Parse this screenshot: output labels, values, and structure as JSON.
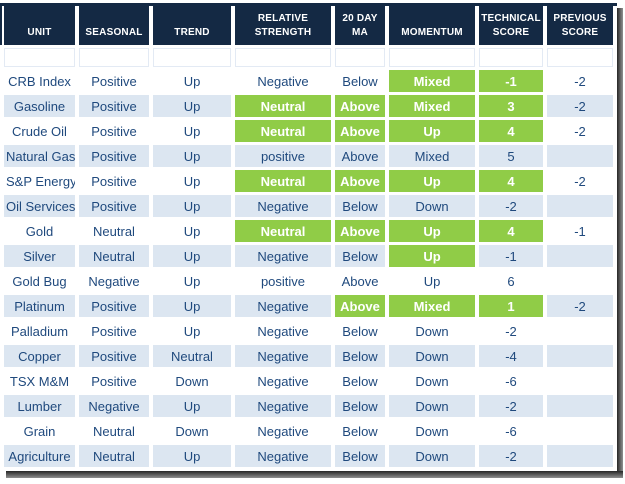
{
  "chart_data": {
    "type": "table",
    "title": "",
    "columns": [
      {
        "key": "unit",
        "label": "UNIT"
      },
      {
        "key": "seasonal",
        "label": "SEASONAL"
      },
      {
        "key": "trend",
        "label": "TREND"
      },
      {
        "key": "relative_strength",
        "label": "RELATIVE STRENGTH"
      },
      {
        "key": "ma_20day",
        "label": "20 DAY MA"
      },
      {
        "key": "momentum",
        "label": "MOMENTUM"
      },
      {
        "key": "technical_score",
        "label": "TECHNICAL SCORE"
      },
      {
        "key": "previous_score",
        "label": "PREVIOUS SCORE"
      }
    ],
    "rows": [
      {
        "unit": "CRB Index",
        "seasonal": "Positive",
        "trend": "Up",
        "relative_strength": "Negative",
        "ma_20day": "Below",
        "momentum": "Mixed",
        "technical_score": "-1",
        "previous_score": "-2",
        "highlights": [
          "momentum",
          "technical_score"
        ]
      },
      {
        "unit": "Gasoline",
        "seasonal": "Positive",
        "trend": "Up",
        "relative_strength": "Neutral",
        "ma_20day": "Above",
        "momentum": "Mixed",
        "technical_score": "3",
        "previous_score": "-2",
        "highlights": [
          "relative_strength",
          "ma_20day",
          "momentum",
          "technical_score"
        ]
      },
      {
        "unit": "Crude Oil",
        "seasonal": "Positive",
        "trend": "Up",
        "relative_strength": "Neutral",
        "ma_20day": "Above",
        "momentum": "Up",
        "technical_score": "4",
        "previous_score": "-2",
        "highlights": [
          "relative_strength",
          "ma_20day",
          "momentum",
          "technical_score"
        ]
      },
      {
        "unit": "Natural Gas",
        "seasonal": "Positive",
        "trend": "Up",
        "relative_strength": "positive",
        "ma_20day": "Above",
        "momentum": "Mixed",
        "technical_score": "5",
        "previous_score": "",
        "highlights": []
      },
      {
        "unit": "S&P Energy",
        "seasonal": "Positive",
        "trend": "Up",
        "relative_strength": "Neutral",
        "ma_20day": "Above",
        "momentum": "Up",
        "technical_score": "4",
        "previous_score": "-2",
        "highlights": [
          "relative_strength",
          "ma_20day",
          "momentum",
          "technical_score"
        ]
      },
      {
        "unit": "Oil Services",
        "seasonal": "Positive",
        "trend": "Up",
        "relative_strength": "Negative",
        "ma_20day": "Below",
        "momentum": "Down",
        "technical_score": "-2",
        "previous_score": "",
        "highlights": []
      },
      {
        "unit": "Gold",
        "seasonal": "Neutral",
        "trend": "Up",
        "relative_strength": "Neutral",
        "ma_20day": "Above",
        "momentum": "Up",
        "technical_score": "4",
        "previous_score": "-1",
        "highlights": [
          "relative_strength",
          "ma_20day",
          "momentum",
          "technical_score"
        ]
      },
      {
        "unit": "Silver",
        "seasonal": "Neutral",
        "trend": "Up",
        "relative_strength": "Negative",
        "ma_20day": "Below",
        "momentum": "Up",
        "technical_score": "-1",
        "previous_score": "",
        "highlights": [
          "momentum"
        ]
      },
      {
        "unit": "Gold Bug",
        "seasonal": "Negative",
        "trend": "Up",
        "relative_strength": "positive",
        "ma_20day": "Above",
        "momentum": "Up",
        "technical_score": "6",
        "previous_score": "",
        "highlights": []
      },
      {
        "unit": "Platinum",
        "seasonal": "Positive",
        "trend": "Up",
        "relative_strength": "Negative",
        "ma_20day": "Above",
        "momentum": "Mixed",
        "technical_score": "1",
        "previous_score": "-2",
        "highlights": [
          "ma_20day",
          "momentum",
          "technical_score"
        ]
      },
      {
        "unit": "Palladium",
        "seasonal": "Positive",
        "trend": "Up",
        "relative_strength": "Negative",
        "ma_20day": "Below",
        "momentum": "Down",
        "technical_score": "-2",
        "previous_score": "",
        "highlights": []
      },
      {
        "unit": "Copper",
        "seasonal": "Positive",
        "trend": "Neutral",
        "relative_strength": "Negative",
        "ma_20day": "Below",
        "momentum": "Down",
        "technical_score": "-4",
        "previous_score": "",
        "highlights": []
      },
      {
        "unit": "TSX M&M",
        "seasonal": "Positive",
        "trend": "Down",
        "relative_strength": "Negative",
        "ma_20day": "Below",
        "momentum": "Down",
        "technical_score": "-6",
        "previous_score": "",
        "highlights": []
      },
      {
        "unit": "Lumber",
        "seasonal": "Negative",
        "trend": "Up",
        "relative_strength": "Negative",
        "ma_20day": "Below",
        "momentum": "Down",
        "technical_score": "-2",
        "previous_score": "",
        "highlights": []
      },
      {
        "unit": "Grain",
        "seasonal": "Neutral",
        "trend": "Down",
        "relative_strength": "Negative",
        "ma_20day": "Below",
        "momentum": "Down",
        "technical_score": "-6",
        "previous_score": "",
        "highlights": []
      },
      {
        "unit": "Agriculture",
        "seasonal": "Neutral",
        "trend": "Up",
        "relative_strength": "Negative",
        "ma_20day": "Below",
        "momentum": "Down",
        "technical_score": "-2",
        "previous_score": "",
        "highlights": []
      }
    ],
    "layout": {
      "stripe_pattern": "even rows (2nd, 4th, ...) shaded light blue",
      "highlight_meaning": "green cell with white bold text",
      "header_align": "bottom-center, wraps to two lines on narrow columns"
    },
    "colors": {
      "header_bg": "#142944",
      "header_text": "#FFFFFF",
      "body_text": "#1F497D",
      "row_stripe": "#DCE6F1",
      "highlight": "#90CC47",
      "gutter": "#FFFFFF",
      "shadow": "#4A4A4A"
    }
  }
}
